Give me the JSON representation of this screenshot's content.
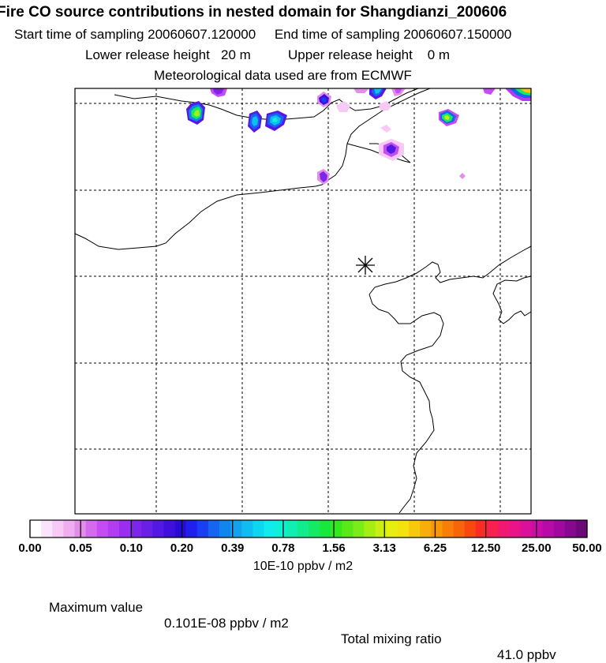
{
  "header": {
    "title": "Fire CO source contributions in nested domain for Shangdianzi_200606",
    "line2": "Start time of sampling 20060607.120000     End time of sampling 20060607.150000",
    "line3": "Lower release height   20 m          Upper release height    0 m",
    "line4": "Meteorological data used are from ECMWF"
  },
  "colorbar": {
    "tick_labels": [
      "0.00",
      "0.05",
      "0.10",
      "0.20",
      "0.39",
      "0.78",
      "1.56",
      "3.13",
      "6.25",
      "12.50",
      "25.00",
      "50.00"
    ],
    "colors": [
      "#ffffff",
      "#fbe3fb",
      "#f6c9f6",
      "#f0aef0",
      "#e28de8",
      "#d46bef",
      "#c44cf2",
      "#b13cf0",
      "#9a2df0",
      "#7e25ea",
      "#6a1fe6",
      "#5418e4",
      "#3f10dd",
      "#2a0ad6",
      "#2020ee",
      "#1a3ff2",
      "#1565f0",
      "#0f86ee",
      "#12a2f0",
      "#10bdf2",
      "#0fd6f0",
      "#10ecec",
      "#0ff0d6",
      "#11eeb4",
      "#12ec8c",
      "#14ea64",
      "#18e83c",
      "#34e820",
      "#58ea18",
      "#7cec16",
      "#a4ee14",
      "#c8ee12",
      "#e6ee10",
      "#f4e20e",
      "#f8c80c",
      "#f8ae0a",
      "#f89608",
      "#f87e08",
      "#f86408",
      "#f84810",
      "#f82c24",
      "#f8204c",
      "#f01870",
      "#e81488",
      "#dc1098",
      "#cc0ca8",
      "#b80aa8",
      "#a008a0",
      "#860890",
      "#6c0878"
    ],
    "units": "10E-10 ppbv / m2"
  },
  "footer": {
    "max_label": "Maximum value",
    "max_value": "0.101E-08 ppbv / m2",
    "total_label": "Total mixing ratio",
    "total_value": "41.0 ppbv"
  }
}
